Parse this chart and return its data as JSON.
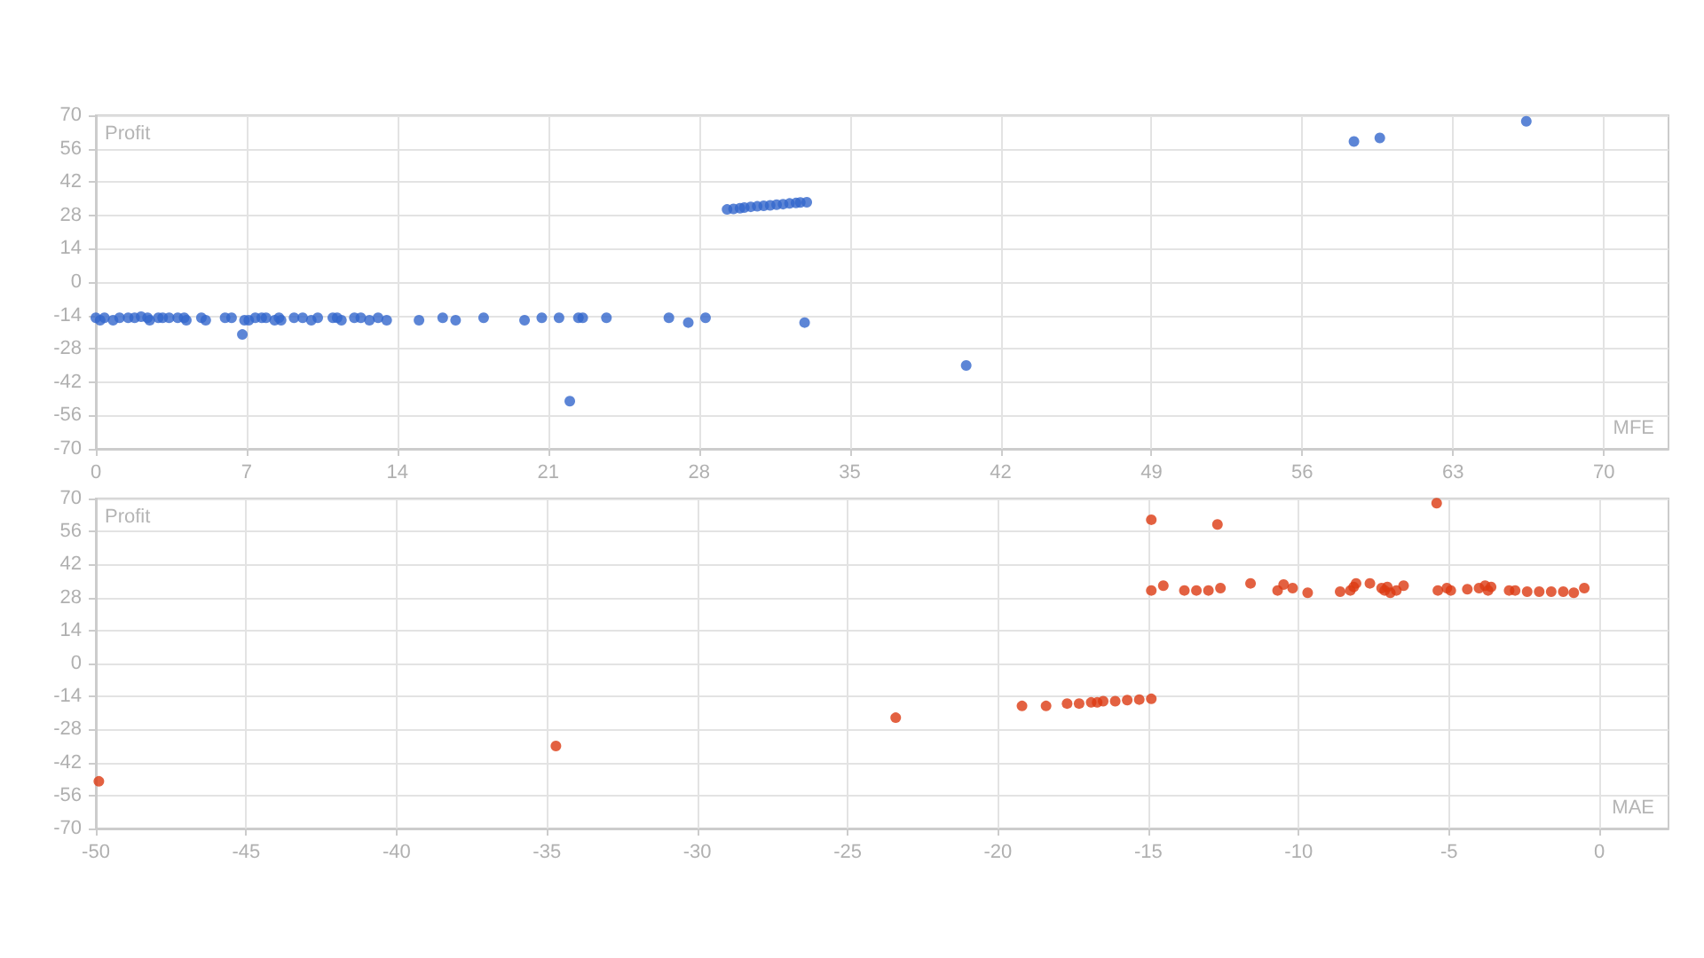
{
  "chart_data": [
    {
      "type": "scatter",
      "xlabel": "MFE",
      "ylabel": "Profit",
      "xlim": [
        0,
        73
      ],
      "xticks": [
        0,
        7,
        14,
        21,
        28,
        35,
        42,
        49,
        56,
        63,
        70
      ],
      "ylim": [
        -70,
        70
      ],
      "yticks": [
        -70,
        -56,
        -42,
        -28,
        -14,
        0,
        14,
        28,
        42,
        56,
        70
      ],
      "grid": true,
      "marker": "circle",
      "series": [
        {
          "color": "#3366cc",
          "x": [
            0,
            0.2,
            0.4,
            0.8,
            1.1,
            1.5,
            1.8,
            2.1,
            2.4,
            2.5,
            2.9,
            3.1,
            3.4,
            3.8,
            4.1,
            4.2,
            4.9,
            5.1,
            6.0,
            6.3,
            6.8,
            6.9,
            7.1,
            7.4,
            7.7,
            7.9,
            8.3,
            8.5,
            8.6,
            9.2,
            9.6,
            10.0,
            10.3,
            11.0,
            11.2,
            11.4,
            12.0,
            12.3,
            12.7,
            13.1,
            13.5,
            15.0,
            16.1,
            16.7,
            18.0,
            19.9,
            20.7,
            21.5,
            22.0,
            22.4,
            22.6,
            23.7,
            26.6,
            27.5,
            28.3,
            32.9,
            40.4,
            29.3,
            29.6,
            29.9,
            30.1,
            30.4,
            30.7,
            31.0,
            31.3,
            31.6,
            31.9,
            32.2,
            32.5,
            32.7,
            33.0,
            58.4,
            59.6,
            66.4
          ],
          "values": [
            -15,
            -16,
            -15,
            -16,
            -15,
            -15,
            -15,
            -14.5,
            -15,
            -16,
            -15,
            -15,
            -15,
            -15,
            -15,
            -16,
            -15,
            -16,
            -15,
            -15,
            -22,
            -16,
            -16,
            -15,
            -15,
            -15,
            -16,
            -15,
            -16,
            -15,
            -15,
            -16,
            -15,
            -15,
            -15,
            -16,
            -15,
            -15,
            -16,
            -15,
            -16,
            -16,
            -15,
            -16,
            -15,
            -16,
            -15,
            -15,
            -50,
            -15,
            -15,
            -15,
            -15,
            -17,
            -15,
            -17,
            -35,
            30.5,
            30.7,
            31,
            31.3,
            31.6,
            31.8,
            32,
            32.2,
            32.5,
            32.7,
            33,
            33.2,
            33.4,
            33.5,
            59,
            60.5,
            67.5
          ]
        }
      ]
    },
    {
      "type": "scatter",
      "xlabel": "MAE",
      "ylabel": "Profit",
      "xlim": [
        -50,
        2.3
      ],
      "xticks": [
        -50,
        -45,
        -40,
        -35,
        -30,
        -25,
        -20,
        -15,
        -10,
        -5,
        0
      ],
      "ylim": [
        -70,
        70
      ],
      "yticks": [
        -70,
        -56,
        -42,
        -28,
        -14,
        0,
        14,
        28,
        42,
        56,
        70
      ],
      "grid": true,
      "marker": "circle",
      "series": [
        {
          "color": "#dc3912",
          "x": [
            -49.9,
            -34.7,
            -23.4,
            -19.2,
            -18.4,
            -17.7,
            -17.3,
            -16.9,
            -16.7,
            -16.5,
            -16.1,
            -15.7,
            -15.3,
            -14.9,
            -14.9,
            -12.7,
            -14.9,
            -14.5,
            -13.8,
            -13.4,
            -13.0,
            -12.6,
            -11.6,
            -10.7,
            -10.5,
            -10.2,
            -9.7,
            -8.62,
            -8.28,
            -8.17,
            -8.09,
            -7.63,
            -7.24,
            -7.14,
            -7.05,
            -6.95,
            -6.75,
            -6.51,
            -5.41,
            -5.37,
            -5.07,
            -4.94,
            -4.39,
            -4.0,
            -3.8,
            -3.7,
            -3.6,
            -3.0,
            -2.8,
            -2.4,
            -2.0,
            -1.6,
            -1.2,
            -0.85,
            -0.5
          ],
          "values": [
            -50,
            -35,
            -23,
            -18,
            -18,
            -17,
            -17,
            -16.5,
            -16.5,
            -16,
            -16,
            -15.5,
            -15.3,
            -15,
            61,
            59,
            31,
            33,
            31,
            31,
            31,
            32,
            34,
            31,
            33.5,
            32,
            30,
            30.5,
            31,
            32.5,
            34,
            34,
            32,
            31,
            32.5,
            30,
            31,
            33,
            68,
            31,
            32,
            31,
            31.5,
            32,
            33,
            31,
            32.5,
            31,
            31,
            30.5,
            30.5,
            30.5,
            30.5,
            30,
            32
          ]
        }
      ]
    }
  ]
}
